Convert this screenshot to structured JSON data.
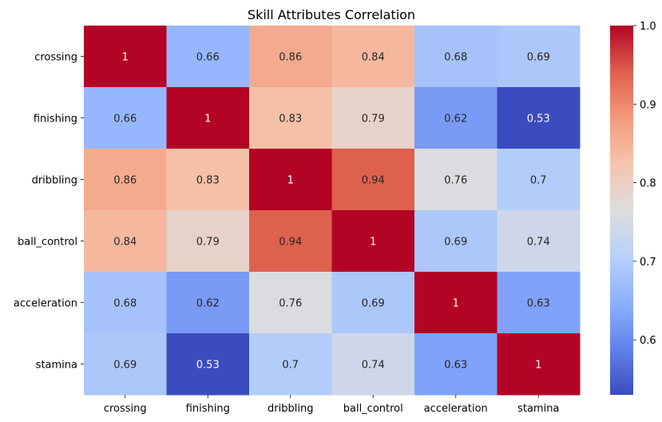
{
  "chart_data": {
    "type": "heatmap",
    "title": "Skill Attributes Correlation",
    "xlabel": "",
    "ylabel": "",
    "x_categories": [
      "crossing",
      "finishing",
      "dribbling",
      "ball_control",
      "acceleration",
      "stamina"
    ],
    "y_categories": [
      "crossing",
      "finishing",
      "dribbling",
      "ball_control",
      "acceleration",
      "stamina"
    ],
    "values": [
      [
        1,
        0.66,
        0.86,
        0.84,
        0.68,
        0.69
      ],
      [
        0.66,
        1,
        0.83,
        0.79,
        0.62,
        0.53
      ],
      [
        0.86,
        0.83,
        1,
        0.94,
        0.76,
        0.7
      ],
      [
        0.84,
        0.79,
        0.94,
        1,
        0.69,
        0.74
      ],
      [
        0.68,
        0.62,
        0.76,
        0.69,
        1,
        0.63
      ],
      [
        0.69,
        0.53,
        0.7,
        0.74,
        0.63,
        1
      ]
    ],
    "annotations": [
      [
        "1",
        "0.66",
        "0.86",
        "0.84",
        "0.68",
        "0.69"
      ],
      [
        "0.66",
        "1",
        "0.83",
        "0.79",
        "0.62",
        "0.53"
      ],
      [
        "0.86",
        "0.83",
        "1",
        "0.94",
        "0.76",
        "0.7"
      ],
      [
        "0.84",
        "0.79",
        "0.94",
        "1",
        "0.69",
        "0.74"
      ],
      [
        "0.68",
        "0.62",
        "0.76",
        "0.69",
        "1",
        "0.63"
      ],
      [
        "0.69",
        "0.53",
        "0.7",
        "0.74",
        "0.63",
        "1"
      ]
    ],
    "colormap": "coolwarm",
    "vmin": 0.53,
    "vmax": 1.0,
    "colorbar_ticks": [
      0.6,
      0.7,
      0.8,
      0.9,
      1.0
    ],
    "colorbar_tick_labels": [
      "0.6",
      "0.7",
      "0.8",
      "0.9",
      "1.0"
    ]
  }
}
